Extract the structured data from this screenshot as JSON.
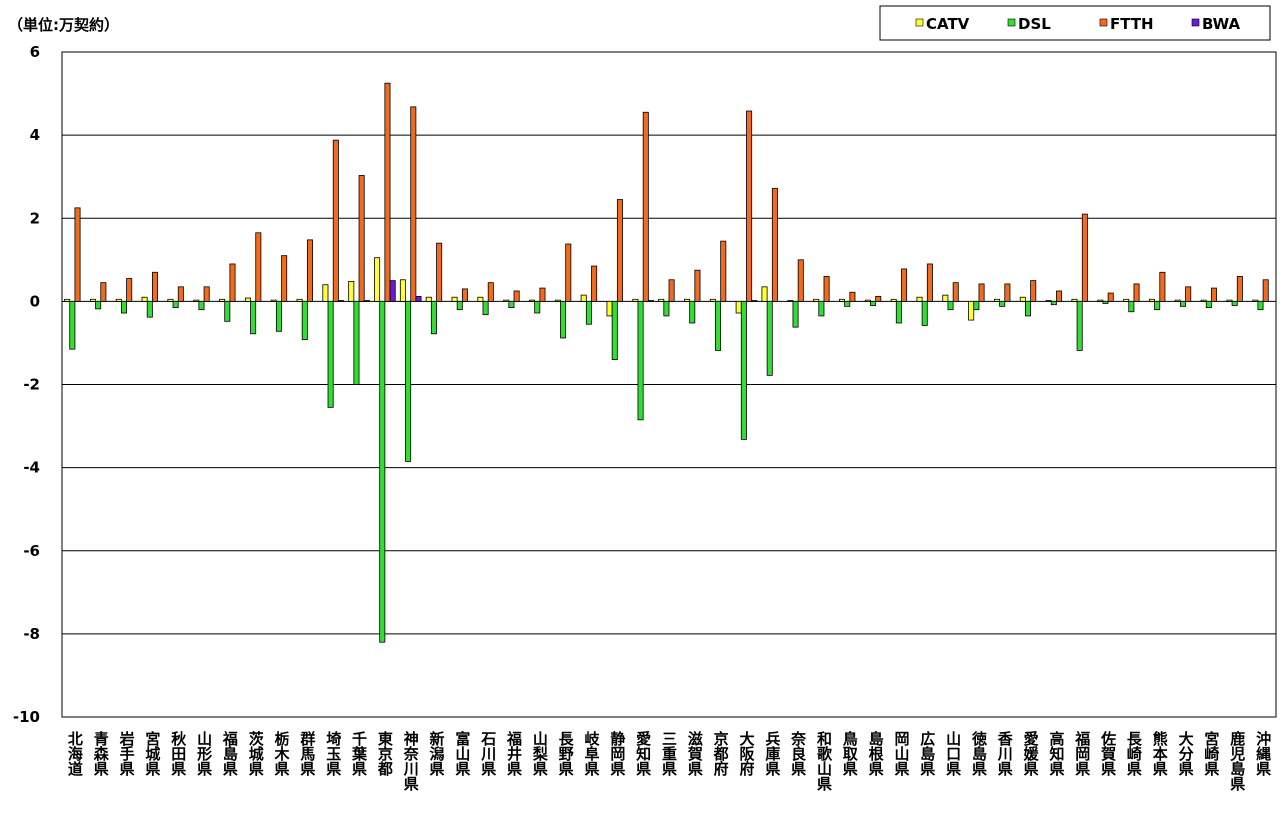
{
  "chart_data": {
    "type": "bar",
    "unit_label": "（単位:万契約）",
    "categories": [
      "北海道",
      "青森県",
      "岩手県",
      "宮城県",
      "秋田県",
      "山形県",
      "福島県",
      "茨城県",
      "栃木県",
      "群馬県",
      "埼玉県",
      "千葉県",
      "東京都",
      "神奈川県",
      "新潟県",
      "富山県",
      "石川県",
      "福井県",
      "山梨県",
      "長野県",
      "岐阜県",
      "静岡県",
      "愛知県",
      "三重県",
      "滋賀県",
      "京都府",
      "大阪府",
      "兵庫県",
      "奈良県",
      "和歌山県",
      "鳥取県",
      "島根県",
      "岡山県",
      "広島県",
      "山口県",
      "徳島県",
      "香川県",
      "愛媛県",
      "高知県",
      "福岡県",
      "佐賀県",
      "長崎県",
      "熊本県",
      "大分県",
      "宮崎県",
      "鹿児島県",
      "沖縄県"
    ],
    "series": [
      {
        "name": "CATV",
        "color": "#ffff33",
        "values": [
          0.05,
          0.05,
          0.05,
          0.1,
          0.05,
          0.03,
          0.05,
          0.08,
          0.03,
          0.05,
          0.4,
          0.48,
          1.05,
          0.52,
          0.1,
          0.1,
          0.1,
          0.03,
          0.03,
          0.03,
          0.15,
          -0.35,
          0.05,
          0.05,
          0.05,
          0.05,
          -0.28,
          0.35,
          0.02,
          0.05,
          0.05,
          0.03,
          0.05,
          0.1,
          0.15,
          -0.45,
          0.05,
          0.1,
          0.02,
          0.05,
          0.03,
          0.05,
          0.05,
          0.03,
          0.03,
          0.03,
          0.03
        ]
      },
      {
        "name": "DSL",
        "color": "#33dd33",
        "values": [
          -1.15,
          -0.18,
          -0.28,
          -0.38,
          -0.15,
          -0.2,
          -0.48,
          -0.78,
          -0.72,
          -0.92,
          -2.55,
          -2.0,
          -8.2,
          -3.85,
          -0.78,
          -0.2,
          -0.32,
          -0.15,
          -0.28,
          -0.88,
          -0.55,
          -1.4,
          -2.85,
          -0.35,
          -0.52,
          -1.18,
          -3.32,
          -1.78,
          -0.62,
          -0.35,
          -0.12,
          -0.1,
          -0.52,
          -0.58,
          -0.2,
          -0.2,
          -0.12,
          -0.35,
          -0.08,
          -1.18,
          -0.05,
          -0.25,
          -0.2,
          -0.12,
          -0.15,
          -0.1,
          -0.2
        ]
      },
      {
        "name": "FTTH",
        "color": "#f26a1b",
        "values": [
          2.25,
          0.45,
          0.55,
          0.7,
          0.35,
          0.35,
          0.9,
          1.65,
          1.1,
          1.48,
          3.88,
          3.03,
          5.25,
          4.68,
          1.4,
          0.3,
          0.45,
          0.25,
          0.32,
          1.38,
          0.85,
          2.45,
          4.55,
          0.52,
          0.75,
          1.45,
          4.58,
          2.72,
          1.0,
          0.6,
          0.22,
          0.12,
          0.78,
          0.9,
          0.45,
          0.42,
          0.42,
          0.5,
          0.25,
          2.1,
          0.2,
          0.42,
          0.7,
          0.35,
          0.32,
          0.6,
          0.52
        ]
      },
      {
        "name": "BWA",
        "color": "#6a1bd6",
        "values": [
          0,
          0,
          0,
          0,
          0,
          0,
          0,
          0,
          0,
          0,
          0.02,
          0.02,
          0.5,
          0.12,
          0,
          0,
          0,
          0,
          0,
          0,
          0,
          0,
          0.02,
          0,
          0,
          0,
          0.02,
          0,
          0,
          0,
          0,
          0,
          0,
          0,
          0,
          0,
          0,
          0,
          0,
          0,
          0,
          0,
          0,
          0,
          0,
          0,
          0
        ]
      }
    ],
    "ylim": [
      -10,
      6
    ],
    "yticks": [
      6,
      4,
      2,
      0,
      -2,
      -4,
      -6,
      -8,
      -10
    ],
    "grid": true,
    "legend": "top-right"
  }
}
